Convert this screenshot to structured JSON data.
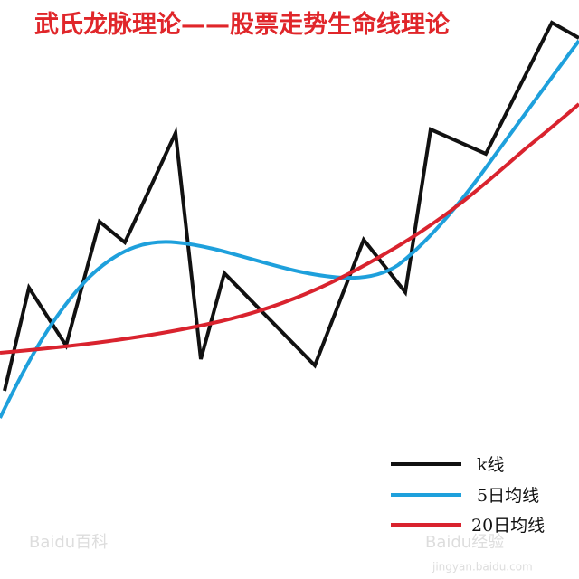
{
  "title": "武氏龙脉理论——股票走势生命线理论",
  "legend": [
    "k线",
    "5日均线",
    "20日均线"
  ],
  "watermarks": [
    "Baidu百科",
    "Baidu经验",
    "jingyan.baidu.com"
  ]
}
